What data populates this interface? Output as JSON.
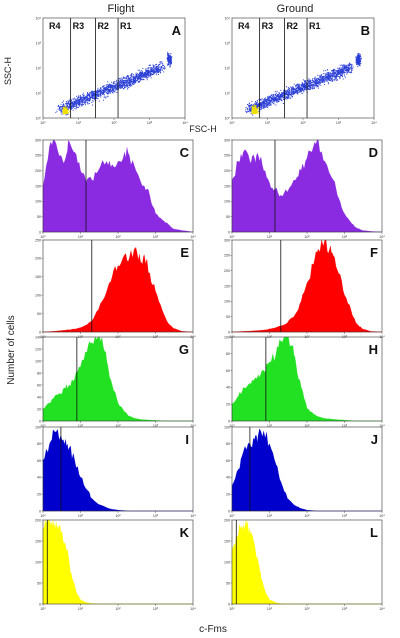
{
  "column_titles": [
    "Flight",
    "Ground"
  ],
  "x_axis_label_scatter": "FSC-H",
  "y_axis_label_scatter": "SSC-H",
  "y_axis_label_histograms": "Number of cells",
  "x_axis_label_histograms": "c-Fms",
  "colors": {
    "scatter": "#2b3fd6",
    "purple": "#8a2be2",
    "red": "#ff0000",
    "green": "#22e022",
    "blue": "#0000cc",
    "yellow": "#ffff00",
    "gate": "#111111"
  },
  "chart_data": [
    {
      "panel": "A",
      "type": "scatter",
      "column": "Flight",
      "xlabel": "FSC-H",
      "ylabel": "SSC-H",
      "x_scale": "log",
      "y_scale": "log",
      "xlim": [
        1,
        10000
      ],
      "ylim": [
        1,
        10000
      ],
      "x_ticks": [
        "10⁰",
        "10¹",
        "10²",
        "10³",
        "10⁴"
      ],
      "y_ticks": [
        "10⁰",
        "10¹",
        "10²",
        "10³",
        "10⁴"
      ],
      "regions": [
        "R4",
        "R3",
        "R2",
        "R1"
      ],
      "gates_x": [
        6,
        30,
        130
      ]
    },
    {
      "panel": "B",
      "type": "scatter",
      "column": "Ground",
      "x_scale": "log",
      "y_scale": "log",
      "xlim": [
        1,
        10000
      ],
      "ylim": [
        1,
        10000
      ],
      "x_ticks": [
        "10⁰",
        "10¹",
        "10²",
        "10³",
        "10⁴"
      ],
      "y_ticks": [
        "10⁰",
        "10¹",
        "10²",
        "10³",
        "10⁴"
      ],
      "regions": [
        "R4",
        "R3",
        "R2",
        "R1"
      ],
      "gates_x": [
        6,
        30,
        130
      ]
    },
    {
      "panel": "C",
      "type": "area",
      "color": "purple",
      "column": "Flight",
      "x_scale": "log",
      "xlim": [
        1,
        10000
      ],
      "ylim": [
        0,
        300
      ],
      "y_ticks": [
        0,
        50,
        100,
        150,
        200,
        250,
        300
      ],
      "gate_x": 14,
      "x": [
        1,
        1.5,
        2,
        3,
        4,
        5,
        7,
        10,
        14,
        20,
        30,
        50,
        70,
        100,
        150,
        200,
        300,
        500,
        700,
        1000,
        1500,
        2000,
        3000,
        5000,
        10000
      ],
      "values": [
        150,
        280,
        300,
        250,
        240,
        295,
        260,
        200,
        160,
        170,
        200,
        230,
        220,
        230,
        260,
        250,
        200,
        150,
        120,
        60,
        40,
        30,
        10,
        5,
        0
      ]
    },
    {
      "panel": "D",
      "type": "area",
      "color": "purple",
      "column": "Ground",
      "x_scale": "log",
      "xlim": [
        1,
        10000
      ],
      "ylim": [
        0,
        300
      ],
      "y_ticks": [
        0,
        50,
        100,
        150,
        200,
        250,
        300
      ],
      "gate_x": 14,
      "x": [
        1,
        1.5,
        2,
        3,
        4,
        5,
        7,
        10,
        14,
        20,
        30,
        50,
        70,
        100,
        150,
        200,
        300,
        500,
        700,
        1000,
        1500,
        2000,
        3000,
        5000,
        10000
      ],
      "values": [
        170,
        230,
        260,
        230,
        240,
        250,
        200,
        160,
        140,
        120,
        130,
        170,
        200,
        240,
        280,
        300,
        230,
        170,
        110,
        60,
        30,
        15,
        5,
        2,
        0
      ]
    },
    {
      "panel": "E",
      "type": "area",
      "color": "red",
      "column": "Flight",
      "x_scale": "log",
      "xlim": [
        1,
        10000
      ],
      "ylim": [
        0,
        250
      ],
      "y_ticks": [
        0,
        50,
        100,
        150,
        200,
        250
      ],
      "gate_x": 20,
      "x": [
        1,
        2,
        4,
        7,
        10,
        15,
        20,
        30,
        50,
        70,
        100,
        150,
        200,
        300,
        400,
        500,
        700,
        1000,
        1500,
        2000,
        3000,
        5000,
        10000
      ],
      "values": [
        0,
        2,
        5,
        8,
        12,
        20,
        30,
        60,
        110,
        150,
        180,
        210,
        200,
        230,
        190,
        210,
        160,
        110,
        60,
        30,
        10,
        2,
        0
      ]
    },
    {
      "panel": "F",
      "type": "area",
      "color": "red",
      "column": "Ground",
      "x_scale": "log",
      "xlim": [
        1,
        10000
      ],
      "ylim": [
        0,
        300
      ],
      "y_ticks": [
        0,
        50,
        100,
        150,
        200,
        250,
        300
      ],
      "gate_x": 20,
      "x": [
        1,
        2,
        4,
        7,
        10,
        15,
        20,
        30,
        50,
        70,
        100,
        150,
        200,
        300,
        400,
        500,
        700,
        1000,
        1500,
        2000,
        3000,
        5000,
        10000
      ],
      "values": [
        0,
        2,
        4,
        6,
        10,
        15,
        20,
        30,
        60,
        100,
        160,
        220,
        270,
        300,
        270,
        250,
        190,
        120,
        70,
        30,
        10,
        2,
        0
      ]
    },
    {
      "panel": "G",
      "type": "area",
      "color": "green",
      "column": "Flight",
      "x_scale": "log",
      "xlim": [
        1,
        10000
      ],
      "ylim": [
        0,
        140
      ],
      "y_ticks": [
        0,
        20,
        40,
        60,
        80,
        100,
        120,
        140
      ],
      "gate_x": 8,
      "x": [
        1,
        1.5,
        2,
        3,
        4,
        5,
        7,
        10,
        15,
        20,
        30,
        40,
        50,
        70,
        100,
        150,
        200,
        300,
        500,
        1000,
        2000,
        10000
      ],
      "values": [
        20,
        30,
        40,
        45,
        55,
        60,
        70,
        90,
        115,
        130,
        140,
        125,
        100,
        60,
        30,
        15,
        8,
        4,
        2,
        1,
        0,
        0
      ]
    },
    {
      "panel": "H",
      "type": "area",
      "color": "green",
      "column": "Ground",
      "x_scale": "log",
      "xlim": [
        1,
        10000
      ],
      "ylim": [
        0,
        100
      ],
      "y_ticks": [
        0,
        20,
        40,
        60,
        80,
        100
      ],
      "gate_x": 8,
      "x": [
        1,
        1.5,
        2,
        3,
        4,
        5,
        7,
        10,
        15,
        20,
        30,
        40,
        50,
        70,
        100,
        150,
        200,
        300,
        500,
        1000,
        2000,
        10000
      ],
      "values": [
        20,
        30,
        40,
        45,
        50,
        55,
        60,
        70,
        80,
        95,
        100,
        90,
        70,
        40,
        15,
        8,
        5,
        3,
        2,
        1,
        0,
        0
      ]
    },
    {
      "panel": "I",
      "type": "area",
      "color": "blue",
      "column": "Flight",
      "x_scale": "log",
      "xlim": [
        1,
        10000
      ],
      "ylim": [
        0,
        100
      ],
      "y_ticks": [
        0,
        20,
        40,
        60,
        80,
        100
      ],
      "gate_x": 3,
      "x": [
        1,
        1.5,
        2,
        3,
        4,
        5,
        7,
        10,
        15,
        20,
        30,
        50,
        70,
        100,
        200,
        500,
        1000,
        10000
      ],
      "values": [
        60,
        80,
        95,
        90,
        85,
        75,
        60,
        40,
        25,
        15,
        8,
        4,
        2,
        1,
        0,
        0,
        0,
        0
      ]
    },
    {
      "panel": "J",
      "type": "area",
      "color": "blue",
      "column": "Ground",
      "x_scale": "log",
      "xlim": [
        1,
        10000
      ],
      "ylim": [
        0,
        100
      ],
      "y_ticks": [
        0,
        20,
        40,
        60,
        80,
        100
      ],
      "gate_x": 3,
      "x": [
        1,
        1.5,
        2,
        3,
        4,
        5,
        7,
        10,
        15,
        20,
        30,
        50,
        70,
        100,
        200,
        500,
        1000,
        10000
      ],
      "values": [
        30,
        50,
        70,
        80,
        85,
        90,
        95,
        80,
        55,
        35,
        15,
        6,
        3,
        1,
        0,
        0,
        0,
        0
      ]
    },
    {
      "panel": "K",
      "type": "area",
      "color": "yellow",
      "column": "Flight",
      "x_scale": "log",
      "xlim": [
        1,
        10000
      ],
      "ylim": [
        0,
        200
      ],
      "y_ticks": [
        0,
        50,
        100,
        150,
        200
      ],
      "gate_x": 1.3,
      "x": [
        1,
        1.3,
        1.7,
        2,
        2.5,
        3,
        4,
        5,
        6,
        8,
        10,
        15,
        20,
        50,
        100,
        1000,
        10000
      ],
      "values": [
        180,
        200,
        195,
        190,
        185,
        170,
        140,
        100,
        60,
        25,
        10,
        3,
        1,
        0,
        0,
        0,
        0
      ]
    },
    {
      "panel": "L",
      "type": "area",
      "color": "yellow",
      "column": "Ground",
      "x_scale": "log",
      "xlim": [
        1,
        10000
      ],
      "ylim": [
        0,
        200
      ],
      "y_ticks": [
        0,
        50,
        100,
        150,
        200
      ],
      "gate_x": 1.3,
      "x": [
        1,
        1.3,
        1.7,
        2,
        2.5,
        3,
        4,
        5,
        6,
        8,
        10,
        15,
        20,
        50,
        100,
        1000,
        10000
      ],
      "values": [
        130,
        160,
        180,
        190,
        185,
        170,
        140,
        100,
        60,
        25,
        10,
        3,
        1,
        0,
        0,
        0,
        0
      ]
    }
  ]
}
